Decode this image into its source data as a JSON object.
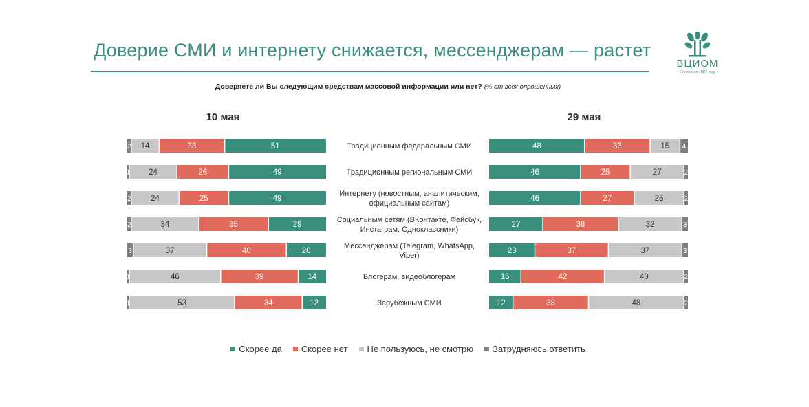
{
  "title": "Доверие СМИ и интернету снижается, мессенджерам — растет",
  "logo": {
    "text": "ВЦИОМ",
    "subtitle": "• Основан в 1987 году •"
  },
  "question": {
    "text": "Доверяете ли Вы следующим средствам массовой информации или нет?",
    "note": "(% от всех опрошенных)"
  },
  "colors": {
    "yes": "#3a8f7c",
    "no": "#e06b5c",
    "not_use": "#c8c8c8",
    "hard_to_say": "#7f7f7f",
    "accent": "#3a8f7c"
  },
  "chart_data": {
    "type": "bar",
    "orientation": "horizontal",
    "stacked": true,
    "categories": [
      "Традиционным федеральным СМИ",
      "Традиционным региональным СМИ",
      "Интернету (новостным, аналитическим, официальным сайтам)",
      "Социальным сетям (ВКонтакте, Фейсбук, Инстаграм, Одноклассники)",
      "Мессенджерам (Telegram, WhatsApp, Viber)",
      "Блогерам, видеоблогерам",
      "Зарубежным СМИ"
    ],
    "series_names": [
      "Скорее да",
      "Скорее нет",
      "Не пользуюсь, не смотрю",
      "Затрудняюсь ответить"
    ],
    "panels": [
      {
        "label": "10 мая",
        "values": [
          {
            "yes": 51,
            "no": 33,
            "not_use": 14,
            "hard": 2
          },
          {
            "yes": 49,
            "no": 26,
            "not_use": 24,
            "hard": 1
          },
          {
            "yes": 49,
            "no": 25,
            "not_use": 24,
            "hard": 2
          },
          {
            "yes": 29,
            "no": 35,
            "not_use": 34,
            "hard": 2
          },
          {
            "yes": 20,
            "no": 40,
            "not_use": 37,
            "hard": 3
          },
          {
            "yes": 14,
            "no": 39,
            "not_use": 46,
            "hard": 1
          },
          {
            "yes": 12,
            "no": 34,
            "not_use": 53,
            "hard": 1
          }
        ]
      },
      {
        "label": "29 мая",
        "values": [
          {
            "yes": 48,
            "no": 33,
            "not_use": 15,
            "hard": 4
          },
          {
            "yes": 46,
            "no": 25,
            "not_use": 27,
            "hard": 2
          },
          {
            "yes": 46,
            "no": 27,
            "not_use": 25,
            "hard": 2
          },
          {
            "yes": 27,
            "no": 38,
            "not_use": 32,
            "hard": 3
          },
          {
            "yes": 23,
            "no": 37,
            "not_use": 37,
            "hard": 3
          },
          {
            "yes": 16,
            "no": 42,
            "not_use": 40,
            "hard": 2
          },
          {
            "yes": 12,
            "no": 38,
            "not_use": 48,
            "hard": 2
          }
        ]
      }
    ],
    "legend_position": "bottom"
  }
}
